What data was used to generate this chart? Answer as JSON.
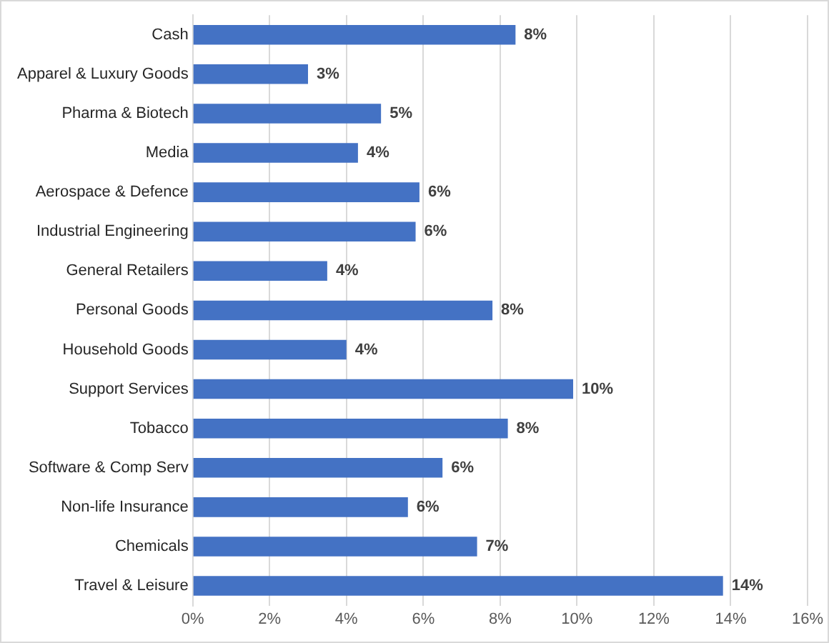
{
  "chart_data": {
    "type": "bar",
    "orientation": "horizontal",
    "categories": [
      "Cash",
      "Apparel & Luxury Goods",
      "Pharma & Biotech",
      "Media",
      "Aerospace & Defence",
      "Industrial Engineering",
      "General Retailers",
      "Personal Goods",
      "Household Goods",
      "Support Services",
      "Tobacco",
      "Software & Comp Serv",
      "Non-life Insurance",
      "Chemicals",
      "Travel & Leisure"
    ],
    "values": [
      8.4,
      3.0,
      4.9,
      4.3,
      5.9,
      5.8,
      3.5,
      7.8,
      4.0,
      9.9,
      8.2,
      6.5,
      5.6,
      7.4,
      13.8
    ],
    "value_labels": [
      "8%",
      "3%",
      "5%",
      "4%",
      "6%",
      "6%",
      "4%",
      "8%",
      "4%",
      "10%",
      "8%",
      "6%",
      "6%",
      "7%",
      "14%"
    ],
    "color": "#4472c4",
    "xlim": [
      0,
      16
    ],
    "xticks": [
      {
        "value": 0,
        "label": "0%"
      },
      {
        "value": 2,
        "label": "2%"
      },
      {
        "value": 4,
        "label": "4%"
      },
      {
        "value": 6,
        "label": "6%"
      },
      {
        "value": 8,
        "label": "8%"
      },
      {
        "value": 10,
        "label": "10%"
      },
      {
        "value": 12,
        "label": "12%"
      },
      {
        "value": 14,
        "label": "14%"
      },
      {
        "value": 16,
        "label": "16%"
      }
    ],
    "grid": "x"
  }
}
